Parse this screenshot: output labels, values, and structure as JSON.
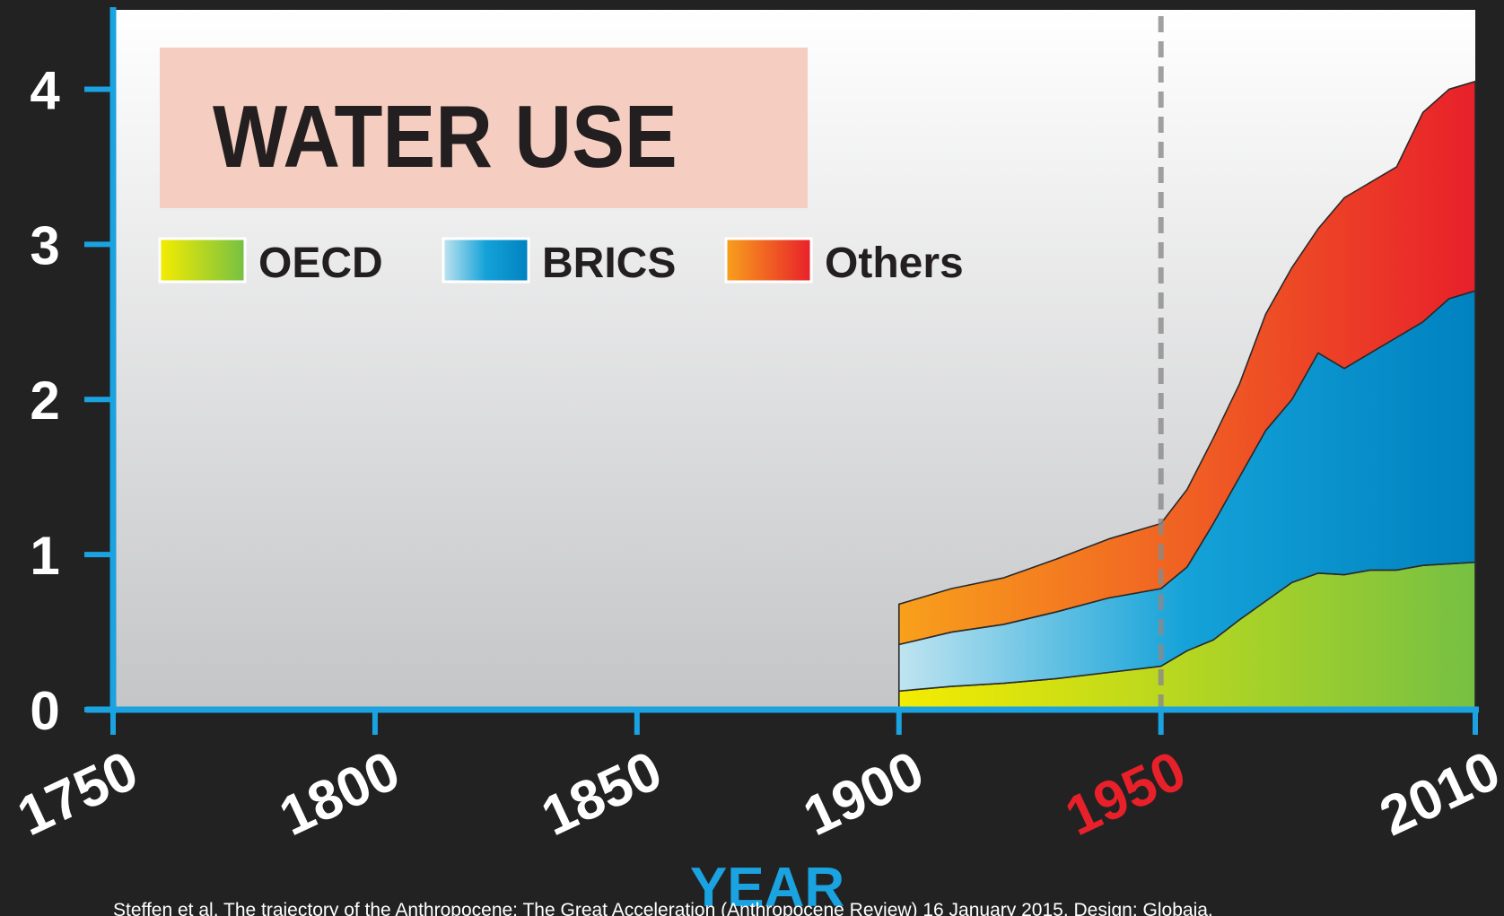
{
  "chart_data": {
    "type": "stacked_area",
    "title": "WATER USE",
    "x_label": "YEAR",
    "source": "Steffen et al. The trajectory of the Anthropocene: The Great Acceleration (Anthropocene Review) 16 January 2015. Design: Globaia.",
    "x": [
      1900,
      1910,
      1920,
      1930,
      1940,
      1950,
      1955,
      1960,
      1965,
      1970,
      1975,
      1980,
      1985,
      1990,
      1995,
      2000,
      2005,
      2010
    ],
    "series": [
      {
        "name": "OECD",
        "color": "#8cc63f",
        "values": [
          0.12,
          0.15,
          0.17,
          0.2,
          0.24,
          0.28,
          0.38,
          0.45,
          0.58,
          0.7,
          0.82,
          0.88,
          0.87,
          0.9,
          0.9,
          0.93,
          0.94,
          0.95
        ]
      },
      {
        "name": "BRICS",
        "color": "#0a8cc8",
        "values": [
          0.3,
          0.35,
          0.38,
          0.43,
          0.48,
          0.5,
          0.54,
          0.75,
          0.92,
          1.1,
          1.18,
          1.42,
          1.33,
          1.4,
          1.5,
          1.57,
          1.71,
          1.75
        ]
      },
      {
        "name": "Others",
        "color": "#e8302a",
        "values": [
          0.26,
          0.28,
          0.3,
          0.34,
          0.38,
          0.42,
          0.5,
          0.55,
          0.6,
          0.75,
          0.85,
          0.8,
          1.1,
          1.1,
          1.1,
          1.35,
          1.35,
          1.35
        ]
      }
    ],
    "xlim": [
      1750,
      2010
    ],
    "xticks": [
      1750,
      1800,
      1850,
      1900,
      1950,
      2010
    ],
    "ylim": [
      0,
      4.5
    ],
    "yticks": [
      0,
      1,
      2,
      3,
      4
    ],
    "highlight": {
      "x": 1950,
      "color": "#e8202a"
    },
    "axis_color": "#1aa3e0"
  }
}
